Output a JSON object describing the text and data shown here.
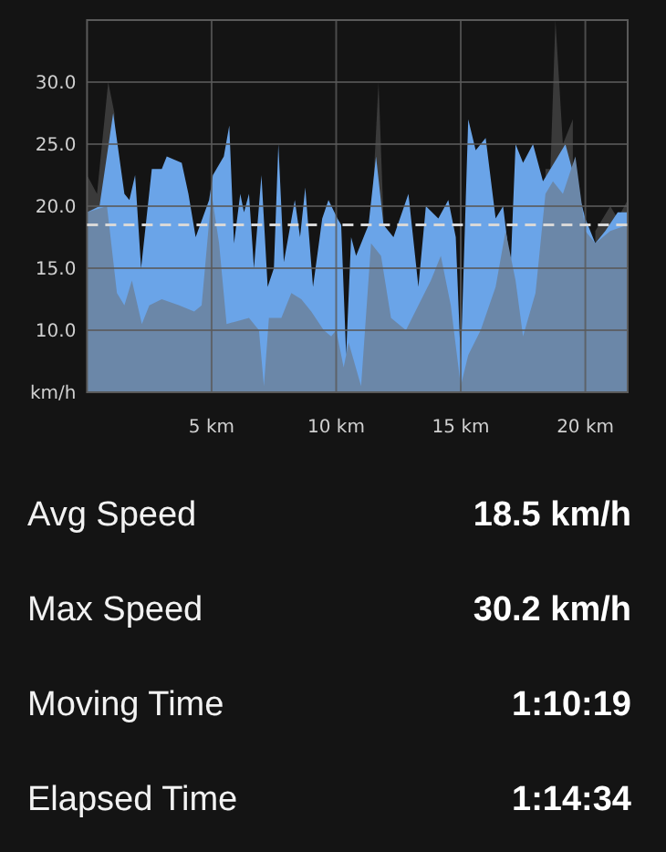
{
  "chart_data": [
    {
      "type": "area",
      "xlim": [
        0,
        21.7
      ],
      "ylim": [
        5,
        35
      ],
      "xticks": [
        {
          "value": 5,
          "label": "5 km"
        },
        {
          "value": 10,
          "label": "10 km"
        },
        {
          "value": 15,
          "label": "15 km"
        },
        {
          "value": 20,
          "label": "20 km"
        }
      ],
      "yticks": [
        {
          "value": 5,
          "label": "km/h"
        },
        {
          "value": 10,
          "label": "10.0"
        },
        {
          "value": 15,
          "label": "15.0"
        },
        {
          "value": 20,
          "label": "20.0"
        },
        {
          "value": 25,
          "label": "25.0"
        },
        {
          "value": 30,
          "label": "30.0"
        },
        {
          "value": 35,
          "label": null
        }
      ],
      "grid": true,
      "ref_lines": [
        {
          "axis": "y",
          "value": 18.5,
          "color": "#d8d8d8",
          "line_style": "dashed"
        }
      ],
      "series": [
        {
          "color": "#3a3a3a",
          "x": [
            0,
            0.4,
            0.85,
            1.1
          ],
          "values": [
            22.5,
            21,
            30,
            27.5
          ]
        },
        {
          "color": "#3a3a3a",
          "x": [
            11.5,
            11.7,
            11.9
          ],
          "values": [
            22,
            30,
            19
          ]
        },
        {
          "color": "#3a3a3a",
          "x": [
            18.4,
            18.6,
            18.8,
            19.1,
            19.5
          ],
          "values": [
            23,
            23,
            35,
            25,
            27
          ]
        },
        {
          "color": "#3a3a3a",
          "x": [
            20.4,
            21.0,
            21.3,
            21.7
          ],
          "values": [
            18,
            20,
            19,
            20.5
          ]
        },
        {
          "color": "#6aa4e8",
          "x": [
            0,
            0.3,
            0.5,
            1.05,
            1.5,
            1.7,
            1.93,
            2.17,
            2.6,
            3.0,
            3.2,
            3.8,
            4.07,
            4.36,
            4.9,
            5.05,
            5.22,
            5.49,
            5.71,
            5.9,
            6.15,
            6.3,
            6.5,
            6.7,
            7.0,
            7.25,
            7.5,
            7.68,
            7.9,
            8.34,
            8.55,
            8.76,
            9.07,
            9.44,
            9.69,
            10.05,
            10.2,
            10.4,
            10.6,
            10.8,
            11.0,
            11.3,
            11.6,
            11.9,
            12.3,
            12.9,
            13.3,
            13.6,
            14.1,
            14.5,
            14.8,
            15.0,
            15.3,
            15.6,
            16.0,
            16.4,
            16.7,
            17.0,
            17.2,
            17.5,
            17.9,
            18.3,
            18.6,
            19.2,
            19.6,
            20.0,
            20.4,
            20.8,
            21.3,
            21.7
          ],
          "values": [
            19.5,
            null,
            20,
            27.5,
            21,
            20.5,
            22.5,
            15,
            23,
            23,
            24,
            23.5,
            21,
            17.5,
            20.5,
            22.5,
            null,
            24,
            26.5,
            17,
            21,
            19.5,
            21,
            15,
            22.5,
            13.5,
            15,
            25,
            15.5,
            20.5,
            17.5,
            21.5,
            13.5,
            19,
            20.5,
            19,
            18.5,
            8,
            17.5,
            16,
            null,
            18.5,
            24,
            18.5,
            17.5,
            21,
            13.5,
            20,
            19,
            20.5,
            17.5,
            7.5,
            27,
            24.5,
            25.5,
            19,
            20,
            15,
            25,
            23.5,
            25,
            22,
            null,
            25,
            null,
            19,
            17,
            18,
            19.5,
            19.5
          ]
        },
        {
          "color": "#6b87a8",
          "x": [
            0,
            0.8,
            1.2,
            1.5,
            1.8,
            2.2,
            2.5,
            3.0,
            3.7,
            4.3,
            4.6,
            5.0,
            5.3,
            5.6,
            6.5,
            6.9,
            7.1,
            7.3,
            7.8,
            8.2,
            8.6,
            9.0,
            9.5,
            9.8,
            10.0,
            10.3,
            10.5,
            11.0,
            11.4,
            11.8,
            12.2,
            12.8,
            13.3,
            13.8,
            14.2,
            14.6,
            15.0,
            15.3,
            15.8,
            16.4,
            16.8,
            17.2,
            17.5,
            18.0,
            18.4,
            18.7,
            19.1,
            19.6,
            20.0,
            20.4,
            21.0,
            21.7
          ],
          "values": [
            19.5,
            20,
            13,
            12,
            14,
            10.5,
            12,
            12.5,
            12,
            11.5,
            12,
            21,
            17,
            10.5,
            11,
            10,
            5.5,
            11,
            11,
            13,
            12.5,
            11.5,
            10,
            9.5,
            10,
            7,
            9,
            5.5,
            17,
            16,
            11,
            10,
            12,
            14,
            16,
            12,
            5.5,
            8,
            10,
            13.5,
            18,
            14,
            9.5,
            13,
            21,
            22,
            21,
            24,
            18,
            17,
            18,
            18.5
          ]
        }
      ]
    },
    {
      "type": "other",
      "annotations": [
        "Avg Speed",
        "18.5 km/h",
        "Max Speed",
        "30.2 km/h",
        "Moving Time",
        "1:10:19",
        "Elapsed Time",
        "1:14:34"
      ]
    }
  ]
}
